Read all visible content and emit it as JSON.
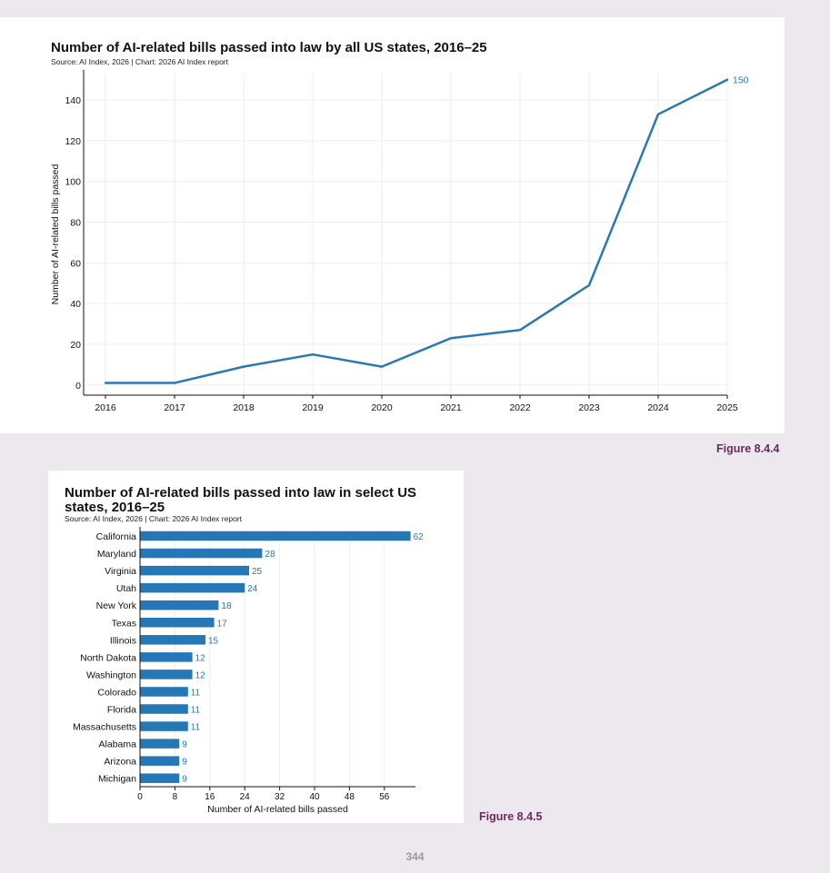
{
  "figures": {
    "line_label": "Figure 8.4.4",
    "bar_label": "Figure 8.4.5"
  },
  "page_number": "344",
  "colors": {
    "series": "#2a78b3",
    "bar": "#2577b6",
    "figure_label": "#6b2a5f",
    "grid": "#eeeeee",
    "axis": "#111111"
  },
  "chart_data": [
    {
      "type": "line",
      "title": "Number of AI-related bills passed into law by all US states, 2016–25",
      "source": "Source: AI Index, 2026 | Chart: 2026 AI Index report",
      "xlabel": "",
      "ylabel": "Number of AI-related bills passed",
      "x": [
        "2016",
        "2017",
        "2018",
        "2019",
        "2020",
        "2021",
        "2022",
        "2023",
        "2024",
        "2025"
      ],
      "values": [
        1,
        1,
        9,
        15,
        9,
        23,
        27,
        49,
        133,
        150
      ],
      "yticks": [
        0,
        20,
        40,
        60,
        80,
        100,
        120,
        140
      ],
      "ylim": [
        -5,
        153
      ],
      "end_label": "150",
      "grid": true
    },
    {
      "type": "bar",
      "orientation": "horizontal",
      "title": "Number of AI-related bills passed into law in select US states, 2016–25",
      "source": "Source: AI Index, 2026 | Chart: 2026 AI Index report",
      "xlabel": "Number of AI-related bills passed",
      "ylabel": "",
      "categories": [
        "California",
        "Maryland",
        "Virginia",
        "Utah",
        "New York",
        "Texas",
        "Illinois",
        "North Dakota",
        "Washington",
        "Colorado",
        "Florida",
        "Massachusetts",
        "Alabama",
        "Arizona",
        "Michigan"
      ],
      "values": [
        62,
        28,
        25,
        24,
        18,
        17,
        15,
        12,
        12,
        11,
        11,
        11,
        9,
        9,
        9
      ],
      "xticks": [
        0,
        8,
        16,
        24,
        32,
        40,
        48,
        56
      ],
      "xlim": [
        0,
        65
      ],
      "grid": true
    }
  ]
}
